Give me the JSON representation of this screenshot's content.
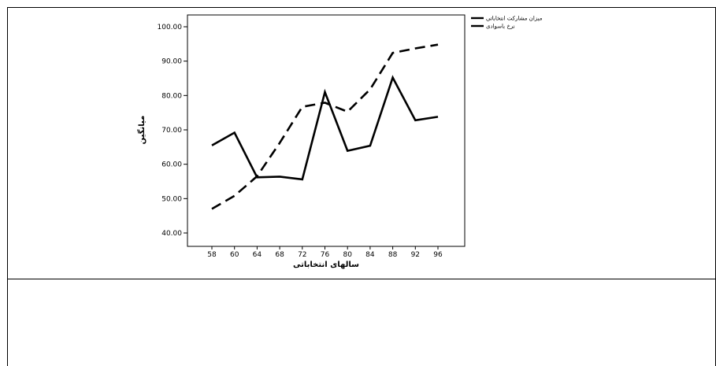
{
  "chart_data": {
    "type": "line",
    "x": [
      58,
      60,
      64,
      68,
      72,
      76,
      80,
      84,
      88,
      92,
      96
    ],
    "xlabel": "سالهای انتخاباتی",
    "ylabel": "میانگین",
    "ylim": [
      40,
      100
    ],
    "yticks": [
      "40.00",
      "50.00",
      "60.00",
      "70.00",
      "80.00",
      "90.00",
      "100.00"
    ],
    "grid": false,
    "legend_position": "top-right",
    "series": [
      {
        "name": "میزان مشارکت انتخاباتی",
        "style": "solid",
        "color": "#000000",
        "values": [
          65.5,
          69.2,
          56.2,
          56.4,
          55.6,
          81.0,
          63.9,
          65.4,
          85.2,
          72.8,
          73.8
        ]
      },
      {
        "name": "نرخ باسوادی",
        "style": "dashed",
        "color": "#000000",
        "values": [
          47.0,
          50.8,
          56.5,
          66.2,
          76.7,
          77.9,
          75.3,
          81.8,
          92.4,
          93.7,
          94.8
        ]
      }
    ]
  }
}
